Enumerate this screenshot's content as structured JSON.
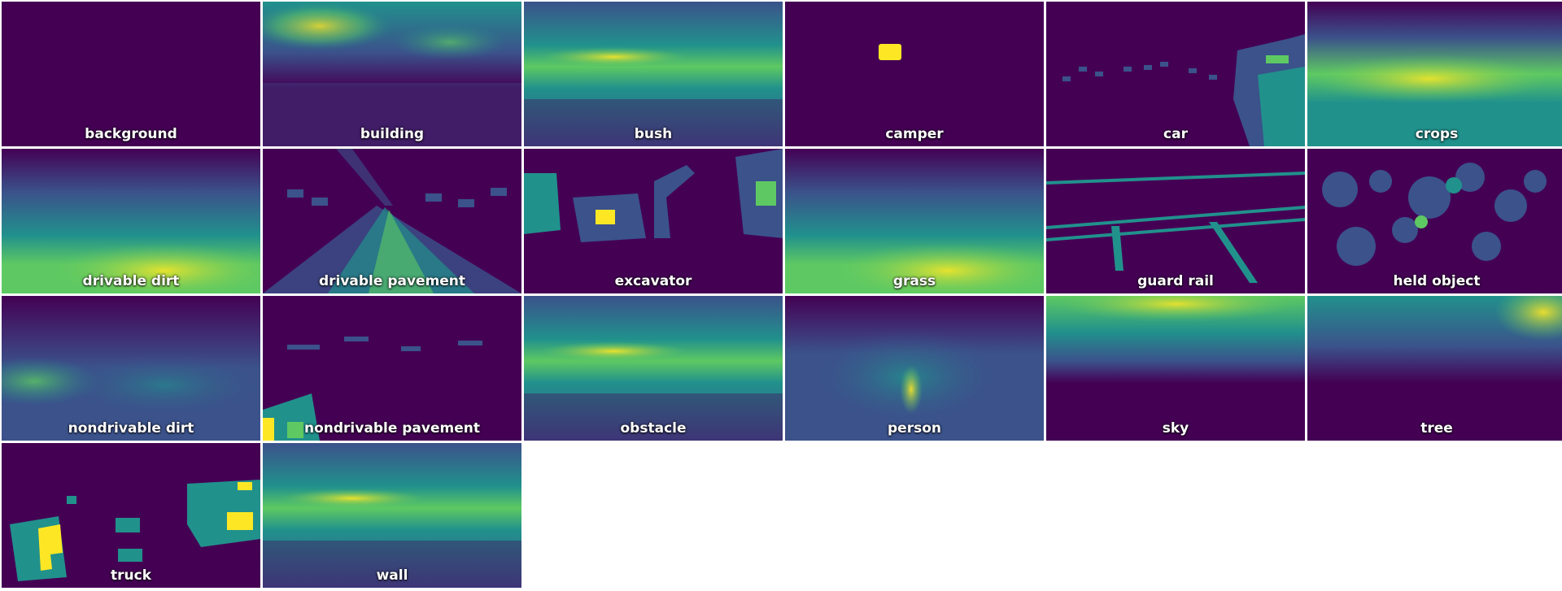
{
  "figure": {
    "colormap": "viridis",
    "colors": {
      "low": "#440154",
      "mid_low": "#3b528b",
      "mid": "#21918c",
      "mid_high": "#5ec962",
      "high": "#fde725",
      "separator": "#ffffff"
    },
    "tiles": [
      {
        "label": "background",
        "pattern": "empty"
      },
      {
        "label": "building",
        "pattern": "upper-bright"
      },
      {
        "label": "bush",
        "pattern": "band-mid"
      },
      {
        "label": "camper",
        "pattern": "small-blob"
      },
      {
        "label": "car",
        "pattern": "sparse-right"
      },
      {
        "label": "crops",
        "pattern": "lower-bright"
      },
      {
        "label": "drivable dirt",
        "pattern": "bottom-bright"
      },
      {
        "label": "drivable pavement",
        "pattern": "road-fan"
      },
      {
        "label": "excavator",
        "pattern": "machines"
      },
      {
        "label": "grass",
        "pattern": "bottom-bright"
      },
      {
        "label": "guard rail",
        "pattern": "rails"
      },
      {
        "label": "held object",
        "pattern": "scattered"
      },
      {
        "label": "nondrivable dirt",
        "pattern": "diffuse-left"
      },
      {
        "label": "nondrivable pavement",
        "pattern": "sparse-bottom"
      },
      {
        "label": "obstacle",
        "pattern": "band-mid"
      },
      {
        "label": "person",
        "pattern": "center-vertical"
      },
      {
        "label": "sky",
        "pattern": "top-bright"
      },
      {
        "label": "tree",
        "pattern": "top-right-bright"
      },
      {
        "label": "truck",
        "pattern": "truck-shapes"
      },
      {
        "label": "wall",
        "pattern": "band-mid"
      }
    ]
  }
}
